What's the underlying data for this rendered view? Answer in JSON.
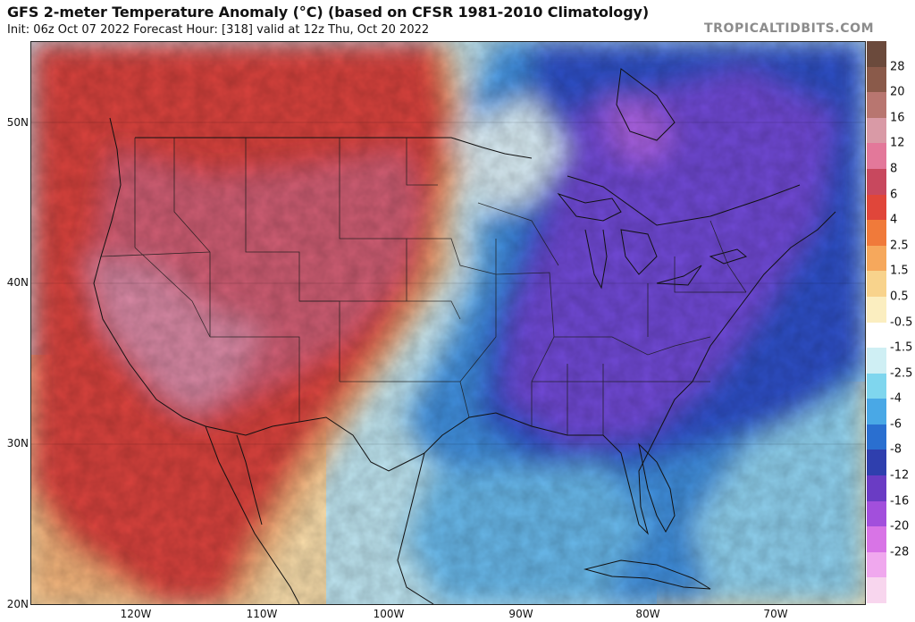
{
  "header": {
    "title": "GFS 2-meter Temperature Anomaly (°C) (based on CFSR 1981-2010 Climatology)",
    "subtitle": "Init: 06z Oct 07 2022   Forecast Hour: [318]   valid at 12z Thu, Oct 20 2022",
    "credit": "TROPICALTIDBITS.COM"
  },
  "axes": {
    "lat_labels": [
      "50N",
      "40N",
      "30N",
      "20N"
    ],
    "lon_labels": [
      "120W",
      "110W",
      "100W",
      "90W",
      "80W",
      "70W"
    ]
  },
  "colorbar": {
    "labels": [
      "28",
      "20",
      "16",
      "12",
      "8",
      "6",
      "4",
      "2.5",
      "1.5",
      "0.5",
      "-0.5",
      "-1.5",
      "-2.5",
      "-4",
      "-6",
      "-8",
      "-12",
      "-16",
      "-20",
      "-28"
    ],
    "colors": [
      "#6b4a3c",
      "#8a5a4a",
      "#b87670",
      "#d99aa6",
      "#e3789a",
      "#c8485e",
      "#e0463a",
      "#f07a3a",
      "#f6a85c",
      "#f8d38c",
      "#fbeec0",
      "#ffffff",
      "#cfeff4",
      "#7fd6ee",
      "#49a8e6",
      "#2a6fd0",
      "#2f3fae",
      "#6a3cc4",
      "#a24fdc",
      "#d874e6",
      "#f0a8ee",
      "#f8d6ee"
    ]
  },
  "palette": {
    "warm_strong": "#c8323a",
    "warm_pink": "#d7708e",
    "warm_light": "#f6c98a",
    "cool_light": "#bfe6f2",
    "cool_mid": "#3f8fde",
    "cool_deep": "#2f4fc8",
    "cool_purple": "#7a46d8"
  }
}
